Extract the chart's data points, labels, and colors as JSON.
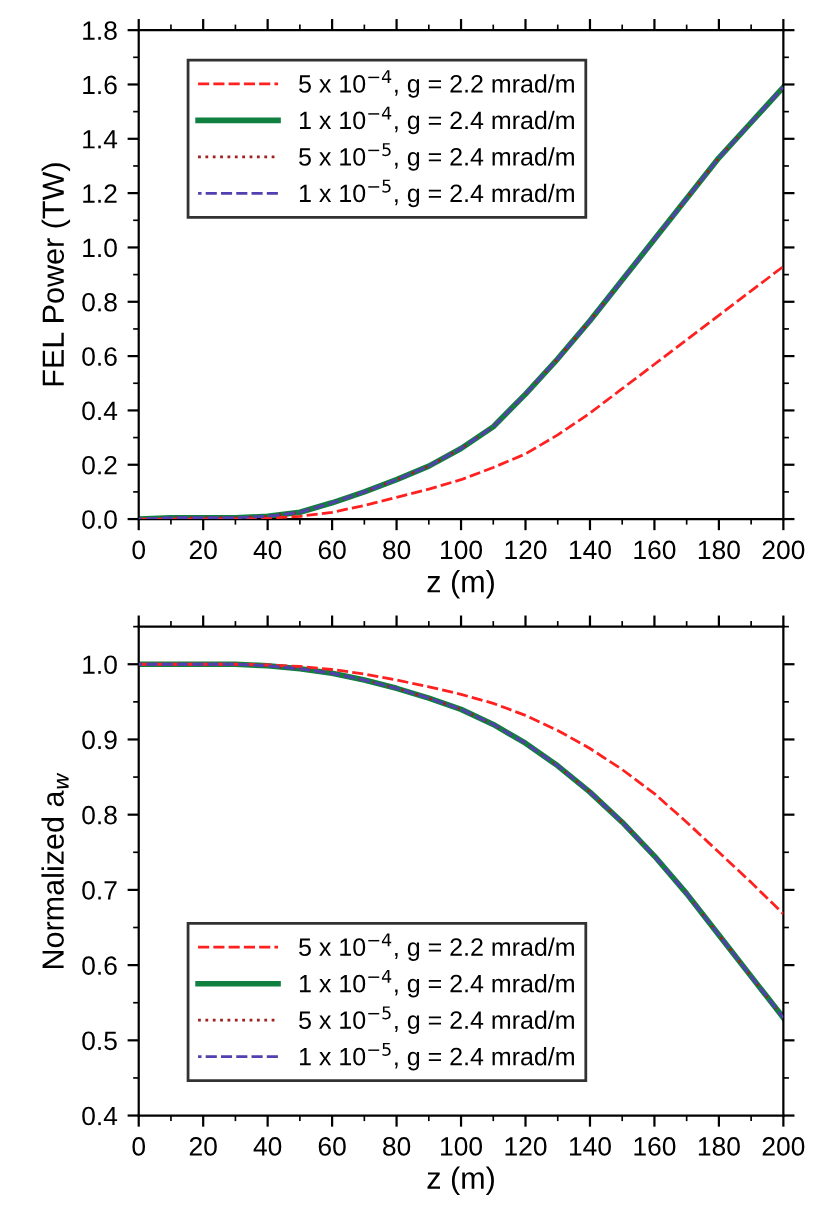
{
  "chart_data": [
    {
      "type": "line",
      "xlabel": "z (m)",
      "ylabel": "FEL Power (TW)",
      "x": [
        0,
        10,
        20,
        30,
        40,
        50,
        60,
        70,
        80,
        90,
        100,
        110,
        120,
        130,
        140,
        150,
        160,
        170,
        180,
        190,
        200
      ],
      "xlim": [
        0,
        200
      ],
      "xticks": [
        0,
        20,
        40,
        60,
        80,
        100,
        120,
        140,
        160,
        180,
        200
      ],
      "ylim": [
        0,
        1.8
      ],
      "yticks": [
        {
          "value": 0,
          "label": "0.0"
        },
        {
          "value": 0.2,
          "label": "0.2"
        },
        {
          "value": 0.4,
          "label": "0.4"
        },
        {
          "value": 0.6,
          "label": "0.6"
        },
        {
          "value": 0.8,
          "label": "0.8"
        },
        {
          "value": 1.0,
          "label": "1.0"
        },
        {
          "value": 1.2,
          "label": "1.2"
        },
        {
          "value": 1.4,
          "label": "1.4"
        },
        {
          "value": 1.6,
          "label": "1.6"
        },
        {
          "value": 1.8,
          "label": "1.8"
        }
      ],
      "legend": "top left",
      "grid": false,
      "series": [
        {
          "name": "5 x 10$^{−4}$, g = 2.2 mrad/m",
          "color": "#ff2020",
          "line_style": "dashed",
          "values": [
            0,
            0,
            0,
            0,
            0.003,
            0.01,
            0.025,
            0.05,
            0.08,
            0.11,
            0.145,
            0.19,
            0.24,
            0.31,
            0.39,
            0.48,
            0.57,
            0.66,
            0.75,
            0.84,
            0.93
          ]
        },
        {
          "name": "1 x 10$^{−4}$, g = 2.4 mrad/m",
          "color": "#108040",
          "line_style": "solid",
          "values": [
            0,
            0.005,
            0.005,
            0.005,
            0.01,
            0.025,
            0.06,
            0.1,
            0.145,
            0.195,
            0.26,
            0.34,
            0.46,
            0.59,
            0.73,
            0.88,
            1.03,
            1.18,
            1.33,
            1.46,
            1.59
          ]
        },
        {
          "name": "5 x 10$^{−5}$, g = 2.4 mrad/m",
          "color": "#a02020",
          "line_style": "dotted",
          "values": [
            0,
            0.005,
            0.005,
            0.005,
            0.01,
            0.025,
            0.06,
            0.1,
            0.145,
            0.195,
            0.26,
            0.34,
            0.46,
            0.59,
            0.73,
            0.88,
            1.03,
            1.18,
            1.33,
            1.46,
            1.59
          ]
        },
        {
          "name": "1 x 10$^{−5}$, g = 2.4 mrad/m",
          "color": "#5040b0",
          "line_style": "dashed",
          "values": [
            0,
            0.005,
            0.005,
            0.005,
            0.01,
            0.025,
            0.06,
            0.1,
            0.145,
            0.195,
            0.26,
            0.34,
            0.46,
            0.59,
            0.73,
            0.88,
            1.03,
            1.18,
            1.33,
            1.46,
            1.59
          ]
        }
      ]
    },
    {
      "type": "line",
      "xlabel": "z (m)",
      "ylabel": "Normalized a$_{w}$",
      "x": [
        0,
        10,
        20,
        30,
        40,
        50,
        60,
        70,
        80,
        90,
        100,
        110,
        120,
        130,
        140,
        150,
        160,
        170,
        180,
        190,
        200
      ],
      "xlim": [
        0,
        200
      ],
      "xticks": [
        0,
        20,
        40,
        60,
        80,
        100,
        120,
        140,
        160,
        180,
        200
      ],
      "ylim": [
        0.4,
        1.05
      ],
      "yticks": [
        {
          "value": 0.4,
          "label": "0.4"
        },
        {
          "value": 0.5,
          "label": "0.5"
        },
        {
          "value": 0.6,
          "label": "0.6"
        },
        {
          "value": 0.7,
          "label": "0.7"
        },
        {
          "value": 0.8,
          "label": "0.8"
        },
        {
          "value": 0.9,
          "label": "0.9"
        },
        {
          "value": 1.0,
          "label": "1.0"
        }
      ],
      "legend": "bottom left",
      "grid": false,
      "series": [
        {
          "name": "5 x 10$^{−4}$, g = 2.2 mrad/m",
          "color": "#ff2020",
          "line_style": "dashed",
          "values": [
            1,
            1,
            1,
            1,
            0.999,
            0.997,
            0.993,
            0.987,
            0.979,
            0.97,
            0.96,
            0.948,
            0.932,
            0.912,
            0.888,
            0.86,
            0.828,
            0.79,
            0.75,
            0.71,
            0.668
          ]
        },
        {
          "name": "1 x 10$^{−4}$, g = 2.4 mrad/m",
          "color": "#108040",
          "line_style": "solid",
          "values": [
            1,
            1,
            1,
            1,
            0.998,
            0.994,
            0.988,
            0.979,
            0.968,
            0.955,
            0.94,
            0.92,
            0.895,
            0.865,
            0.83,
            0.79,
            0.745,
            0.695,
            0.64,
            0.585,
            0.53
          ]
        },
        {
          "name": "5 x 10$^{−5}$, g = 2.4 mrad/m",
          "color": "#a02020",
          "line_style": "dotted",
          "values": [
            1,
            1,
            1,
            1,
            0.998,
            0.994,
            0.988,
            0.979,
            0.968,
            0.955,
            0.94,
            0.92,
            0.895,
            0.865,
            0.83,
            0.79,
            0.745,
            0.695,
            0.64,
            0.585,
            0.53
          ]
        },
        {
          "name": "1 x 10$^{−5}$, g = 2.4 mrad/m",
          "color": "#5040b0",
          "line_style": "dashed",
          "values": [
            1,
            1,
            1,
            1,
            0.998,
            0.994,
            0.988,
            0.979,
            0.968,
            0.955,
            0.94,
            0.92,
            0.895,
            0.865,
            0.83,
            0.79,
            0.745,
            0.695,
            0.64,
            0.585,
            0.53
          ]
        }
      ]
    }
  ]
}
